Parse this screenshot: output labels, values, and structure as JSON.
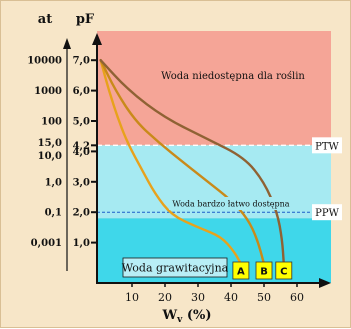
{
  "chart_data": {
    "type": "line",
    "xlabel": "W",
    "xlabel_sub": "v",
    "xlabel_unit": " (%)",
    "ylabel_pf": "pF",
    "ylabel_at": "at",
    "xlim": [
      0,
      64
    ],
    "ylim": [
      0,
      7.3
    ],
    "x_ticks": [
      "10",
      "20",
      "30",
      "40",
      "50",
      "60"
    ],
    "pf_ticks": [
      {
        "pf": 7.0,
        "label": "7,0",
        "at": "10000"
      },
      {
        "pf": 6.0,
        "label": "6,0",
        "at": "1000"
      },
      {
        "pf": 5.0,
        "label": "5,0",
        "at": "100"
      },
      {
        "pf": 4.2,
        "label": "4,2",
        "at": "15,0"
      },
      {
        "pf": 4.0,
        "label": "4,0",
        "at": "10,0"
      },
      {
        "pf": 3.0,
        "label": "3,0",
        "at": "1,0"
      },
      {
        "pf": 2.0,
        "label": "2,0",
        "at": "0,1"
      },
      {
        "pf": 1.0,
        "label": "1,0",
        "at": "0,001"
      }
    ],
    "zones": {
      "unavailable_label": "Woda niedostępna dla roślin",
      "easily_available_label": "Woda bardzo łatwo dostępna",
      "gravitational_label": "Woda grawitacyjna"
    },
    "reference_lines": [
      {
        "name": "PTW",
        "pf": 4.2
      },
      {
        "name": "PPW",
        "pf": 2.0
      }
    ],
    "series": [
      {
        "name": "A",
        "color": "#e8a21c",
        "points": [
          [
            0.5,
            7.0
          ],
          [
            3,
            6.0
          ],
          [
            6,
            5.0
          ],
          [
            9,
            4.2
          ],
          [
            13,
            3.4
          ],
          [
            17,
            2.6
          ],
          [
            22,
            1.9
          ],
          [
            30,
            1.5
          ],
          [
            37,
            1.2
          ],
          [
            41,
            0.7
          ],
          [
            43,
            0.3
          ]
        ]
      },
      {
        "name": "B",
        "color": "#c98a1a",
        "points": [
          [
            0.5,
            7.0
          ],
          [
            5,
            6.0
          ],
          [
            11,
            5.0
          ],
          [
            18,
            4.3
          ],
          [
            26,
            3.6
          ],
          [
            33,
            3.0
          ],
          [
            40,
            2.4
          ],
          [
            45,
            1.8
          ],
          [
            48,
            1.1
          ],
          [
            50,
            0.3
          ]
        ]
      },
      {
        "name": "C",
        "color": "#8f6234",
        "points": [
          [
            0.5,
            7.0
          ],
          [
            9,
            6.0
          ],
          [
            20,
            5.1
          ],
          [
            33,
            4.4
          ],
          [
            44,
            3.8
          ],
          [
            50,
            3.0
          ],
          [
            54,
            2.0
          ],
          [
            55.5,
            1.1
          ],
          [
            56,
            0.3
          ]
        ]
      }
    ],
    "colors": {
      "unavailable": "#f5a597",
      "available": "#a6eaf2",
      "gravitational": "#3fd7ea",
      "label_box": "#ffff00",
      "reference_line": "#ffffff",
      "ppw_line": "#1c5ec9"
    }
  }
}
